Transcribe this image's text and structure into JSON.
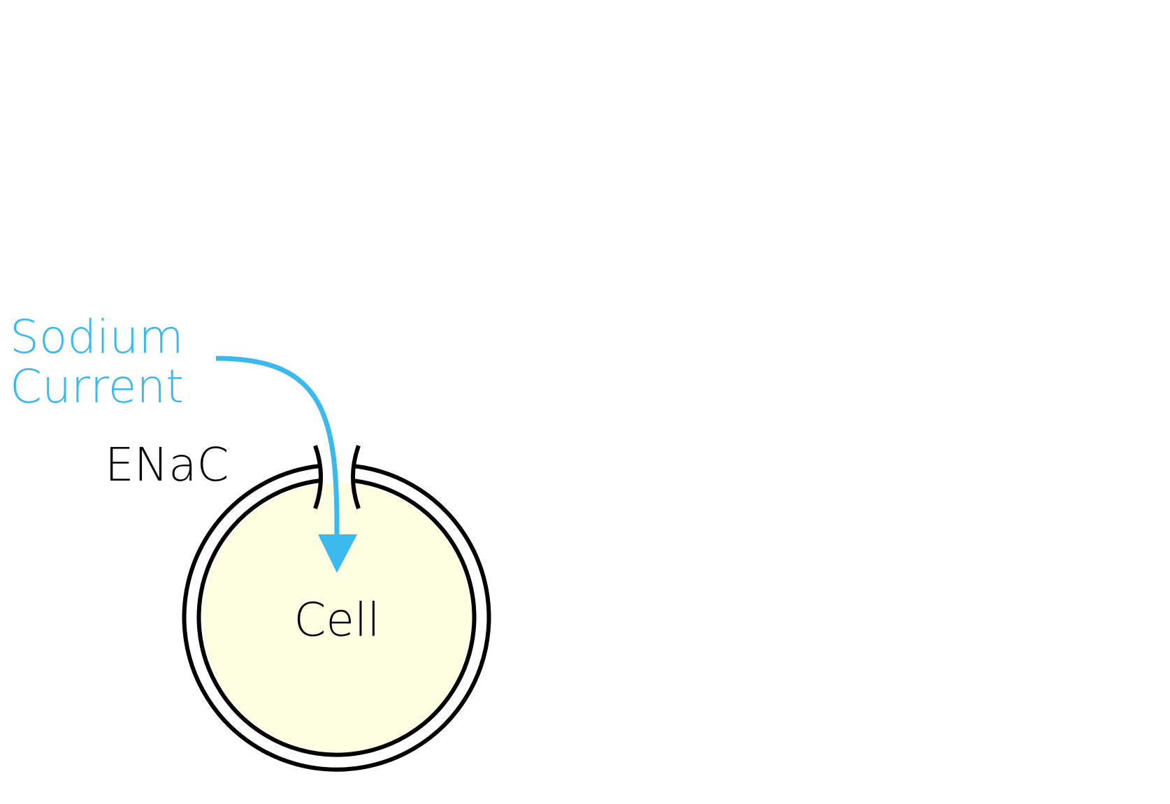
{
  "diagram": {
    "sodium_label_line1": "Sodium",
    "sodium_label_line2": "Current",
    "channel_label": "ENaC",
    "cell_label": "Cell"
  },
  "colors": {
    "sodium": "#3bb8ec",
    "cell_fill": "#fefee3",
    "stroke": "#000000"
  }
}
